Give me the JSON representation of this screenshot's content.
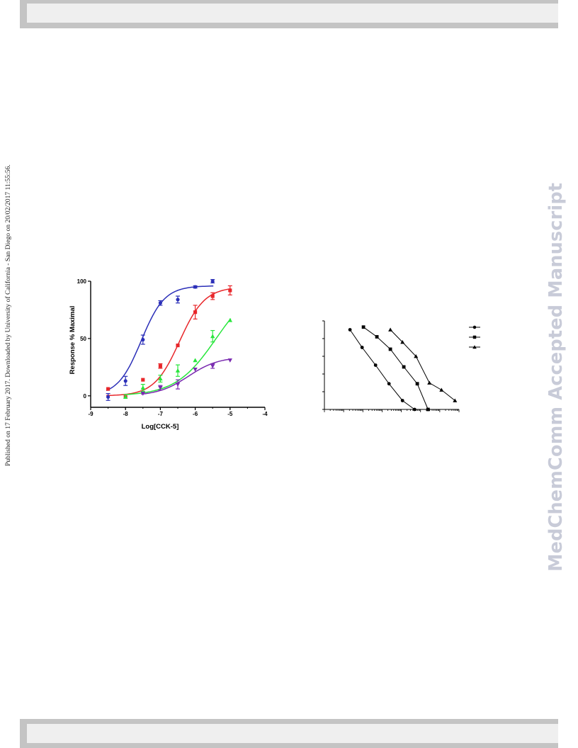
{
  "side_note": "Published on 17 February 2017. Downloaded by University of California - San Diego on 20/02/2017 11:55:56.",
  "watermark": "MedChemComm Accepted Manuscript",
  "colors": {
    "blue": "#2b2fb8",
    "red": "#e8262a",
    "green": "#27e63b",
    "purple": "#7a2bb0",
    "black": "#000000"
  },
  "chart_data": [
    {
      "type": "line",
      "title": "",
      "xlabel": "Log[CCK-5]",
      "ylabel": "Response % Maximal",
      "xlim": [
        -9,
        -4
      ],
      "ylim": [
        -10,
        100
      ],
      "x_ticks": [
        -9,
        -8,
        -7,
        -6,
        -5,
        -4
      ],
      "y_ticks": [
        0,
        50,
        100
      ],
      "grid": false,
      "series": [
        {
          "color": "#2b2fb8",
          "marker": "circle",
          "x": [
            -8.5,
            -8,
            -7.5,
            -7,
            -6.5,
            -6,
            -5.5
          ],
          "y": [
            -1,
            13,
            49,
            81,
            84,
            95,
            100
          ],
          "err": [
            3,
            4,
            4,
            2,
            3,
            1,
            1.5
          ],
          "curve": {
            "bottom": 0,
            "top": 96,
            "logEC50": -7.55,
            "hill": 1.3
          }
        },
        {
          "color": "#e8262a",
          "marker": "square",
          "x": [
            -8.5,
            -8,
            -7.5,
            -7,
            -6.5,
            -6,
            -5.5,
            -5
          ],
          "y": [
            6,
            -1,
            14,
            26,
            44,
            73,
            87,
            92
          ],
          "err": [
            0,
            0,
            0,
            2,
            0,
            6,
            3,
            4
          ],
          "curve": {
            "bottom": 0,
            "top": 95,
            "logEC50": -6.45,
            "hill": 1.2
          }
        },
        {
          "color": "#27e63b",
          "marker": "triangle-up",
          "x": [
            -8,
            -7.5,
            -7,
            -6.5,
            -6,
            -5.5,
            -5
          ],
          "y": [
            -1,
            7,
            15,
            22,
            31,
            52,
            66
          ],
          "err": [
            0,
            3,
            3,
            5,
            0,
            5,
            0
          ],
          "curve": {
            "bottom": 0,
            "top": 100,
            "logEC50": -5.4,
            "hill": 0.75
          }
        },
        {
          "color": "#7a2bb0",
          "marker": "triangle-down",
          "x": [
            -7.5,
            -7,
            -6.5,
            -6,
            -5.5,
            -5
          ],
          "y": [
            2,
            7,
            10,
            23,
            26,
            31
          ],
          "err": [
            0,
            2,
            4,
            0,
            2,
            0
          ],
          "curve": {
            "bottom": 0,
            "top": 34,
            "logEC50": -6.2,
            "hill": 1.0
          }
        }
      ]
    },
    {
      "type": "line",
      "title": "",
      "xlabel": "",
      "ylabel": "",
      "scale": "log-x",
      "x_decades": 7,
      "y_divisions": 5,
      "legend": "top-right",
      "series": [
        {
          "marker": "circle",
          "color": "#000000",
          "x_frac": [
            0.19,
            0.28,
            0.38,
            0.48,
            0.58,
            0.67
          ],
          "y_frac": [
            0.9,
            0.7,
            0.5,
            0.29,
            0.1,
            0.0
          ]
        },
        {
          "marker": "square",
          "color": "#000000",
          "x_frac": [
            0.29,
            0.39,
            0.49,
            0.59,
            0.69,
            0.77
          ],
          "y_frac": [
            0.93,
            0.82,
            0.68,
            0.48,
            0.29,
            0.0
          ]
        },
        {
          "marker": "triangle-up",
          "color": "#000000",
          "x_frac": [
            0.49,
            0.58,
            0.68,
            0.78,
            0.87,
            0.97
          ],
          "y_frac": [
            0.9,
            0.76,
            0.6,
            0.3,
            0.22,
            0.1
          ]
        }
      ]
    }
  ]
}
